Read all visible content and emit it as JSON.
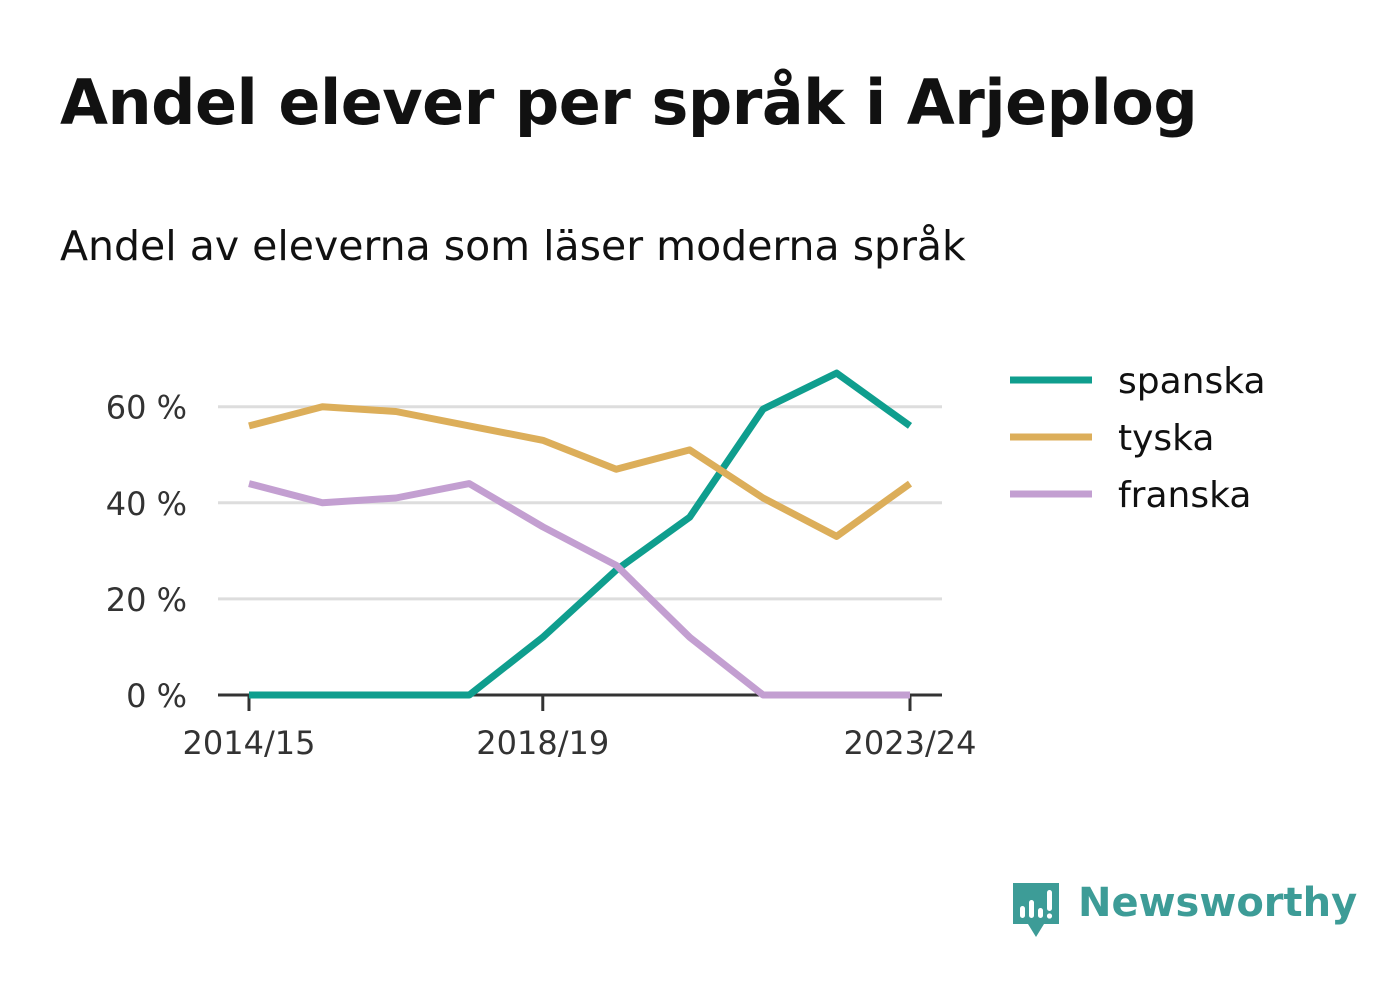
{
  "header": {
    "title": "Andel elever per språk i Arjeplog",
    "subtitle": "Andel av eleverna som läser moderna språk"
  },
  "brand": {
    "name": "Newsworthy",
    "color": "#3d9c97",
    "icon": "newsworthy-bar-chart-icon"
  },
  "chart_data": {
    "type": "line",
    "x": [
      "2014/15",
      "2015/16",
      "2016/17",
      "2017/18",
      "2018/19",
      "2019/20",
      "2020/21",
      "2021/22",
      "2022/23",
      "2023/24"
    ],
    "x_tick_labels": [
      "2014/15",
      "2018/19",
      "2023/24"
    ],
    "y_ticks": [
      0,
      20,
      40,
      60
    ],
    "y_tick_labels": [
      "0 %",
      "20 %",
      "40 %",
      "60 %"
    ],
    "ylim": [
      0,
      70
    ],
    "grid": true,
    "legend_position": "right",
    "series": [
      {
        "name": "spanska",
        "color": "#0f9e8e",
        "values": [
          0,
          0,
          0,
          0,
          12,
          26,
          37,
          59.5,
          67,
          56
        ]
      },
      {
        "name": "tyska",
        "color": "#dcae5a",
        "values": [
          56,
          60,
          59,
          56,
          53,
          47,
          51,
          41,
          33,
          44
        ]
      },
      {
        "name": "franska",
        "color": "#c39fd1",
        "values": [
          44,
          40,
          41,
          44,
          35,
          27,
          12,
          0,
          0,
          0
        ]
      }
    ]
  }
}
